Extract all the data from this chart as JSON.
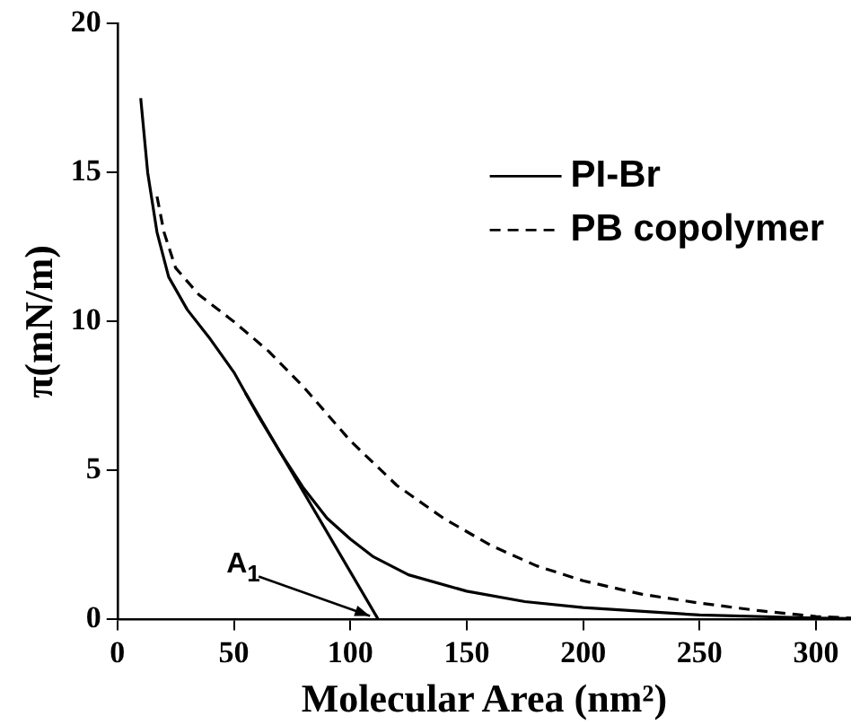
{
  "chart_data": {
    "type": "line",
    "xlabel": "Molecular Area (nm²)",
    "ylabel": "π(mN/m)",
    "xlim": [
      0,
      315
    ],
    "ylim": [
      0,
      20
    ],
    "xticks": [
      0,
      50,
      100,
      150,
      200,
      250,
      300
    ],
    "yticks": [
      0,
      5,
      10,
      15,
      20
    ],
    "grid": false,
    "legend": "top right",
    "marker": "none",
    "series": [
      {
        "name": "PI-Br",
        "color": "#000000",
        "line_style": "solid",
        "x": [
          10,
          13,
          17,
          22,
          30,
          40,
          50,
          60,
          70,
          80,
          90,
          100,
          110,
          125,
          150,
          175,
          200,
          250,
          300,
          315
        ],
        "values": [
          17.5,
          15,
          13,
          11.5,
          10.4,
          9.4,
          8.3,
          6.9,
          5.6,
          4.4,
          3.4,
          2.7,
          2.1,
          1.5,
          0.95,
          0.6,
          0.4,
          0.15,
          0.05,
          0.03
        ]
      },
      {
        "name": "PB copolymer",
        "color": "#000000",
        "line_style": "dashed",
        "x": [
          17,
          20,
          25,
          35,
          50,
          65,
          80,
          100,
          120,
          140,
          160,
          180,
          200,
          225,
          250,
          275,
          300,
          315
        ],
        "values": [
          14.2,
          13,
          11.8,
          10.9,
          10,
          9,
          7.8,
          6,
          4.5,
          3.4,
          2.5,
          1.8,
          1.3,
          0.85,
          0.55,
          0.3,
          0.1,
          0.05
        ]
      },
      {
        "type": "line",
        "color": "#000000",
        "line_style": "solid",
        "x": [
          55,
          112
        ],
        "values": [
          7.6,
          0
        ]
      }
    ],
    "annotations": [
      {
        "text": "A$_{1}$",
        "x": 110,
        "y": 0
      }
    ]
  }
}
